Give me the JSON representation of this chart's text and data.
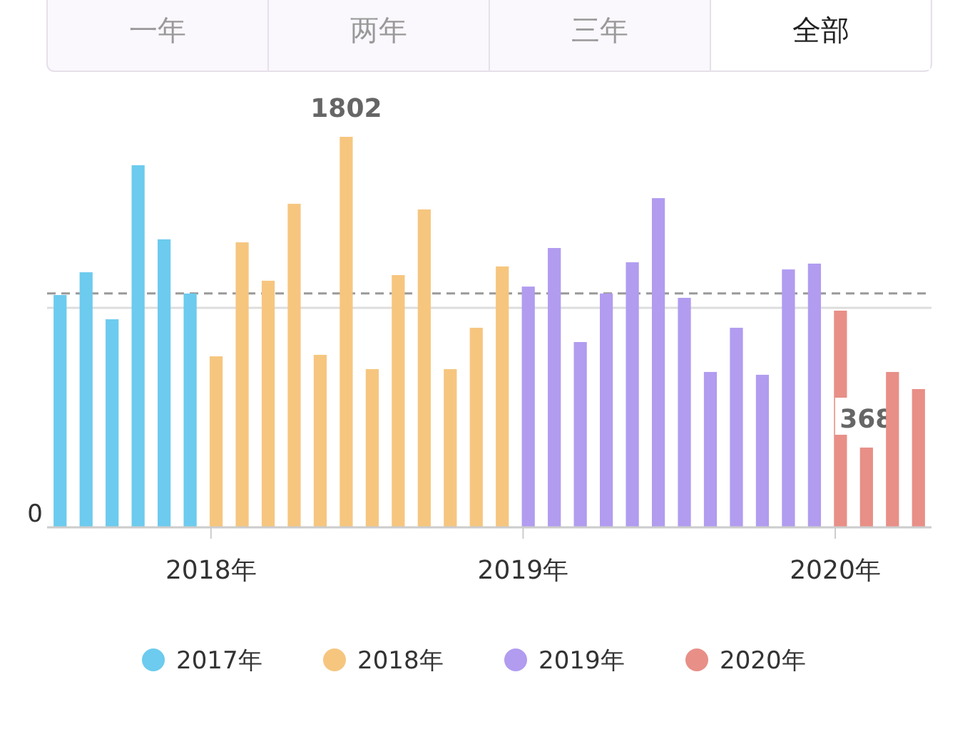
{
  "chart_data": {
    "type": "bar",
    "ylim": [
      0,
      1802
    ],
    "categories": [
      null,
      null,
      null,
      null,
      null,
      null,
      "2018年",
      null,
      null,
      null,
      null,
      null,
      null,
      null,
      null,
      null,
      null,
      null,
      "2019年",
      null,
      null,
      null,
      null,
      null,
      null,
      null,
      null,
      null,
      null,
      null,
      "2020年",
      null,
      null,
      null
    ],
    "series": [
      {
        "name": "2017年",
        "color": "#6ccbee",
        "values": [
          1072,
          1177,
          960,
          1671,
          1329,
          1079,
          null,
          null,
          null,
          null,
          null,
          null,
          null,
          null,
          null,
          null,
          null,
          null,
          null,
          null,
          null,
          null,
          null,
          null,
          null,
          null,
          null,
          null,
          null,
          null,
          null,
          null,
          null,
          null
        ]
      },
      {
        "name": "2018年",
        "color": "#f6c67f",
        "values": [
          null,
          null,
          null,
          null,
          null,
          null,
          789,
          1315,
          1138,
          1493,
          796,
          1802,
          730,
          1164,
          1467,
          730,
          921,
          1204,
          null,
          null,
          null,
          null,
          null,
          null,
          null,
          null,
          null,
          null,
          null,
          null,
          null,
          null,
          null,
          null
        ],
        "value_labels": [
          null,
          null,
          null,
          null,
          null,
          null,
          null,
          null,
          null,
          null,
          null,
          "1802",
          null,
          null,
          null,
          null,
          null,
          null,
          null,
          null,
          null,
          null,
          null,
          null,
          null,
          null,
          null,
          null,
          null,
          null,
          null,
          null,
          null,
          null
        ]
      },
      {
        "name": "2019年",
        "color": "#b19cf0",
        "values": [
          null,
          null,
          null,
          null,
          null,
          null,
          null,
          null,
          null,
          null,
          null,
          null,
          null,
          null,
          null,
          null,
          null,
          null,
          1111,
          1289,
          855,
          1079,
          1223,
          1519,
          1059,
          717,
          921,
          704,
          1190,
          1217,
          null,
          null,
          null,
          null
        ]
      },
      {
        "name": "2020年",
        "color": "#e88f87",
        "values": [
          null,
          null,
          null,
          null,
          null,
          null,
          null,
          null,
          null,
          null,
          null,
          null,
          null,
          null,
          null,
          null,
          null,
          null,
          null,
          null,
          null,
          null,
          null,
          null,
          null,
          null,
          null,
          null,
          null,
          null,
          1000,
          368,
          717,
          638
        ],
        "value_labels": [
          null,
          null,
          null,
          null,
          null,
          null,
          null,
          null,
          null,
          null,
          null,
          null,
          null,
          null,
          null,
          null,
          null,
          null,
          null,
          null,
          null,
          null,
          null,
          null,
          null,
          null,
          null,
          null,
          null,
          null,
          null,
          "368",
          null,
          null
        ]
      }
    ],
    "ref_lines": [
      {
        "axis": "y",
        "value": 1079,
        "color": "#999999",
        "line_style": "dashed"
      },
      {
        "axis": "y",
        "value": 1013,
        "color": "#dddddd",
        "line_style": "solid"
      }
    ],
    "legend": "bottom",
    "annotations": [
      "一年",
      "两年",
      "三年",
      "全部",
      "0"
    ]
  }
}
